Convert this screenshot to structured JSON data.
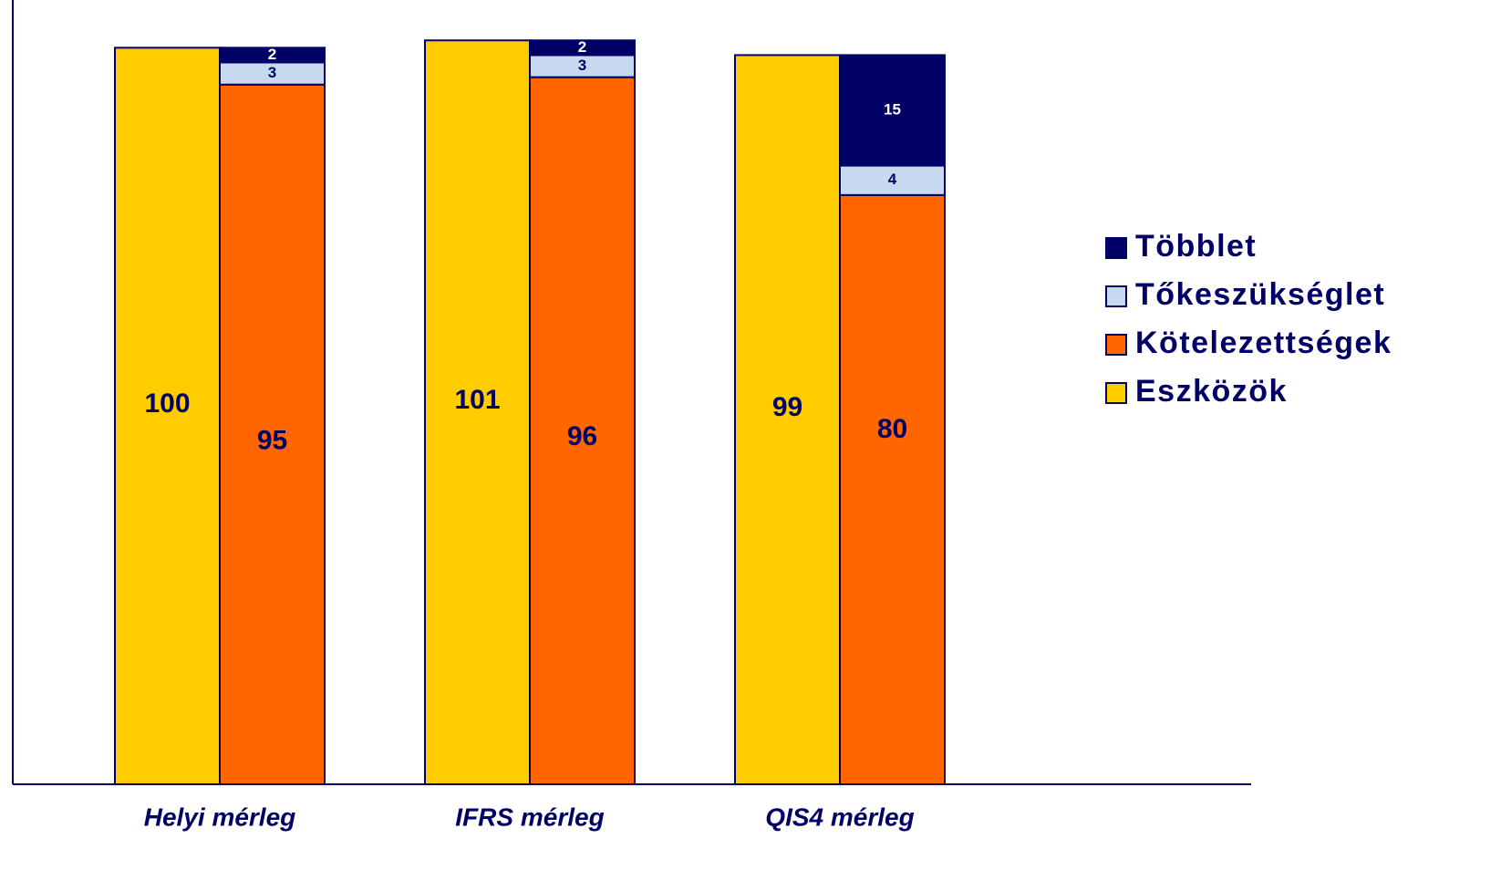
{
  "chart_data": {
    "type": "bar",
    "stacked": true,
    "grid": false,
    "legend_position": "right",
    "ylim": [
      0,
      103
    ],
    "categories": [
      "Helyi mérleg",
      "IFRS mérleg",
      "QIS4 mérleg"
    ],
    "assets": {
      "name": "Eszközök",
      "color": "#FFCC00",
      "values": [
        100,
        101,
        99
      ]
    },
    "stack_series": [
      {
        "name": "Kötelezettségek",
        "color": "#FF6600",
        "values": [
          95,
          96,
          80
        ],
        "label_color": "#000066"
      },
      {
        "name": "Tőkeszükséglet",
        "color": "#C6D9F1",
        "values": [
          3,
          3,
          4
        ],
        "label_color": "#000066"
      },
      {
        "name": "Többlet",
        "color": "#000066",
        "values": [
          2,
          2,
          15
        ],
        "label_color": "#ffffff"
      }
    ],
    "legend": [
      {
        "name": "Többlet",
        "color": "#000066"
      },
      {
        "name": "Tőkeszükséglet",
        "color": "#C6D9F1"
      },
      {
        "name": "Kötelezettségek",
        "color": "#FF6600"
      },
      {
        "name": "Eszközök",
        "color": "#FFCC00"
      }
    ],
    "axis_color": "#000066",
    "text_color": "#000066"
  }
}
